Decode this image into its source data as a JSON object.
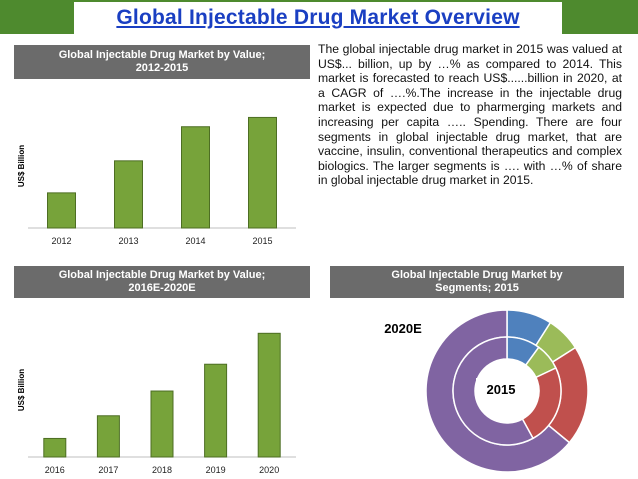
{
  "page": {
    "title": "Global Injectable Drug Market Overview",
    "paragraph": "The global injectable drug market in 2015 was valued at US$... billion, up by …% as compared to 2014. This market is forecasted to reach US$......billion in 2020, at a CAGR of ….%.The increase in the injectable drug market is expected due to pharmerging markets and increasing per capita ….. Spending. There are four segments in global injectable drug market, that are vaccine, insulin, conventional therapeutics and complex biologics. The larger segments is …. with …% of share in global injectable drug market in 2015."
  },
  "colors": {
    "title_bar": "#4e8a2e",
    "title_text": "#1a3fc2",
    "header_bg": "#6b6b6b",
    "bar_fill": "#77a33a",
    "bar_stroke": "#4d6e23",
    "segment_blue": "#4f81bd",
    "segment_green": "#9bbb59",
    "segment_red": "#c0504d",
    "segment_purple": "#8064a2"
  },
  "chart_data": [
    {
      "type": "bar",
      "title": "Global Injectable Drug Market by Value; 2012-2015",
      "title_lines": [
        "Global Injectable Drug Market by Value;",
        "2012-2015"
      ],
      "ylabel": "US$ Billion",
      "xlabel": "",
      "categories": [
        "2012",
        "2013",
        "2014",
        "2015"
      ],
      "values": [
        34,
        65,
        98,
        107
      ],
      "ylim": [
        0,
        120
      ],
      "grid": false
    },
    {
      "type": "bar",
      "title": "Global Injectable Drug Market by Value; 2016E-2020E",
      "title_lines": [
        "Global Injectable Drug Market by Value;",
        "2016E-2020E"
      ],
      "ylabel": "US$ Billion",
      "xlabel": "",
      "categories": [
        "2016",
        "2017",
        "2018",
        "2019",
        "2020"
      ],
      "values": [
        18,
        40,
        64,
        90,
        120
      ],
      "ylim": [
        0,
        130
      ],
      "grid": false
    },
    {
      "type": "pie",
      "title": "Global Injectable Drug Market by Segments; 2015",
      "title_lines": [
        "Global Injectable Drug Market by",
        "Segments; 2015"
      ],
      "labels": [
        "2020E",
        "2015"
      ],
      "rings": [
        {
          "label": "2020E",
          "values": [
            9,
            7,
            20,
            64
          ]
        },
        {
          "label": "2015",
          "values": [
            10,
            8,
            24,
            58
          ]
        }
      ]
    }
  ]
}
